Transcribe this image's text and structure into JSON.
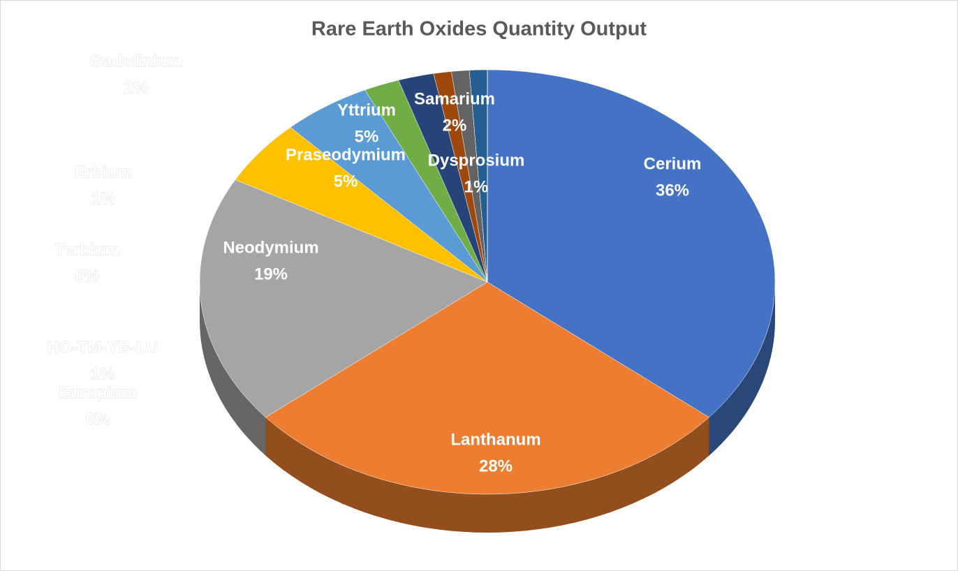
{
  "chart_data": {
    "type": "pie",
    "title": "Rare Earth Oxides Quantity Output",
    "categories": [
      "Cerium",
      "Lanthanum",
      "Neodymium",
      "Praseodymium",
      "Yttrium",
      "Samarium",
      "Gadolinium",
      "Dysprosium",
      "Erbium",
      "Terbium",
      "HO-TM-YB-LU",
      "Europium"
    ],
    "values": [
      36,
      28,
      19,
      5,
      5,
      2,
      2,
      1,
      1,
      0,
      1,
      0
    ],
    "value_labels": [
      "36%",
      "28%",
      "19%",
      "5%",
      "5%",
      "2%",
      "2%",
      "1%",
      "1%",
      "0%",
      "1%",
      "0%"
    ],
    "colors": [
      "#4472c4",
      "#ed7d31",
      "#a5a5a5",
      "#ffc000",
      "#5b9bd5",
      "#70ad47",
      "#264478",
      "#9e480e",
      "#636363",
      "#997300",
      "#255e91",
      "#43682b"
    ]
  }
}
